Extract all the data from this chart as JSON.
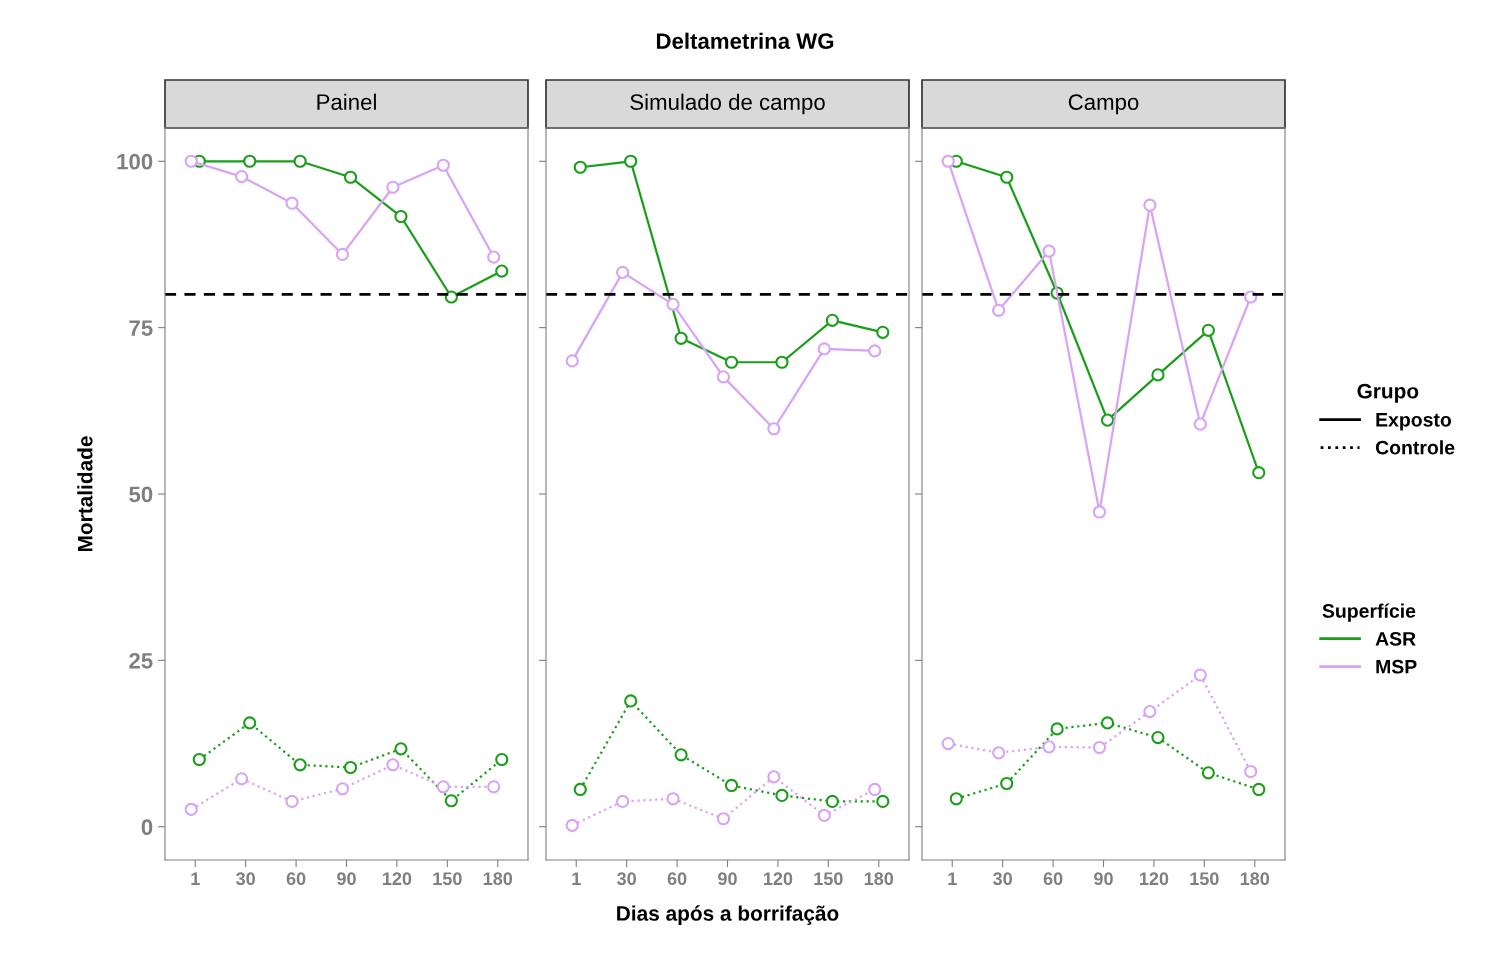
{
  "chart_data": [
    {
      "type": "line",
      "subtitle": "Painel",
      "ylabel": "Mortalidade",
      "categories": [
        "1",
        "30",
        "60",
        "90",
        "120",
        "150",
        "180"
      ],
      "ylim": [
        -5,
        105
      ],
      "yticks": [
        0,
        25,
        50,
        75,
        100
      ],
      "grid": false,
      "marker": "circle",
      "ref_lines": [
        {
          "axis": "y",
          "value": 80,
          "color": "#000000",
          "line_style": "dashed"
        }
      ],
      "series": [
        {
          "color": "#1a9e1a",
          "line_style": "solid",
          "values": [
            100,
            100,
            100,
            97.6,
            91.7,
            79.6,
            83.5
          ]
        },
        {
          "color": "#d9a3f5",
          "line_style": "solid",
          "values": [
            100,
            97.7,
            93.7,
            86,
            96.1,
            99.4,
            85.6
          ]
        },
        {
          "color": "#1a9e1a",
          "line_style": "dotted",
          "values": [
            10.1,
            15.6,
            9.3,
            8.9,
            11.7,
            3.9,
            10.1
          ]
        },
        {
          "color": "#d9a3f5",
          "line_style": "dotted",
          "values": [
            2.6,
            7.2,
            3.8,
            5.7,
            9.3,
            6.0,
            6.0
          ]
        }
      ]
    },
    {
      "type": "line",
      "title": "Deltametrina WG",
      "subtitle": "Simulado de campo",
      "xlabel": "Dias após a borrifação",
      "categories": [
        "1",
        "30",
        "60",
        "90",
        "120",
        "150",
        "180"
      ],
      "ylim": [
        -5,
        105
      ],
      "yticks": [
        0,
        25,
        50,
        75,
        100
      ],
      "tick_labels": "x",
      "grid": false,
      "marker": "circle",
      "ref_lines": [
        {
          "axis": "y",
          "value": 80,
          "color": "#000000",
          "line_style": "dashed"
        }
      ],
      "series": [
        {
          "color": "#1a9e1a",
          "line_style": "solid",
          "values": [
            99.1,
            100,
            73.4,
            69.8,
            69.8,
            76.1,
            74.3
          ]
        },
        {
          "color": "#d9a3f5",
          "line_style": "solid",
          "values": [
            70,
            83.3,
            78.5,
            67.6,
            59.8,
            71.8,
            71.5
          ]
        },
        {
          "color": "#1a9e1a",
          "line_style": "dotted",
          "values": [
            5.6,
            18.9,
            10.8,
            6.2,
            4.7,
            3.8,
            3.8
          ]
        },
        {
          "color": "#d9a3f5",
          "line_style": "dotted",
          "values": [
            0.2,
            3.8,
            4.2,
            1.2,
            7.5,
            1.7,
            5.6
          ]
        }
      ]
    },
    {
      "type": "line",
      "subtitle": "Campo",
      "categories": [
        "1",
        "30",
        "60",
        "90",
        "120",
        "150",
        "180"
      ],
      "ylim": [
        -5,
        105
      ],
      "yticks": [
        0,
        25,
        50,
        75,
        100
      ],
      "tick_labels": "x",
      "grid": false,
      "marker": "circle",
      "legend": "right",
      "legend_title": "Superfície",
      "annotations": [
        "Grupo",
        "Exposto",
        "Controle"
      ],
      "ref_lines": [
        {
          "axis": "y",
          "value": 80,
          "color": "#000000",
          "line_style": "dashed"
        }
      ],
      "series": [
        {
          "name": "ASR",
          "color": "#1a9e1a",
          "line_style": "solid",
          "values": [
            100,
            97.6,
            80.2,
            61.1,
            67.9,
            74.6,
            53.2
          ]
        },
        {
          "name": "MSP",
          "color": "#d9a3f5",
          "line_style": "solid",
          "values": [
            100,
            77.6,
            86.5,
            47.3,
            93.4,
            60.5,
            79.6
          ]
        },
        {
          "color": "#1a9e1a",
          "line_style": "dotted",
          "values": [
            4.2,
            6.5,
            14.7,
            15.6,
            13.4,
            8.1,
            5.6
          ]
        },
        {
          "color": "#d9a3f5",
          "line_style": "dotted",
          "values": [
            12.5,
            11.1,
            12.0,
            11.9,
            17.3,
            22.8,
            8.3
          ]
        }
      ]
    }
  ]
}
